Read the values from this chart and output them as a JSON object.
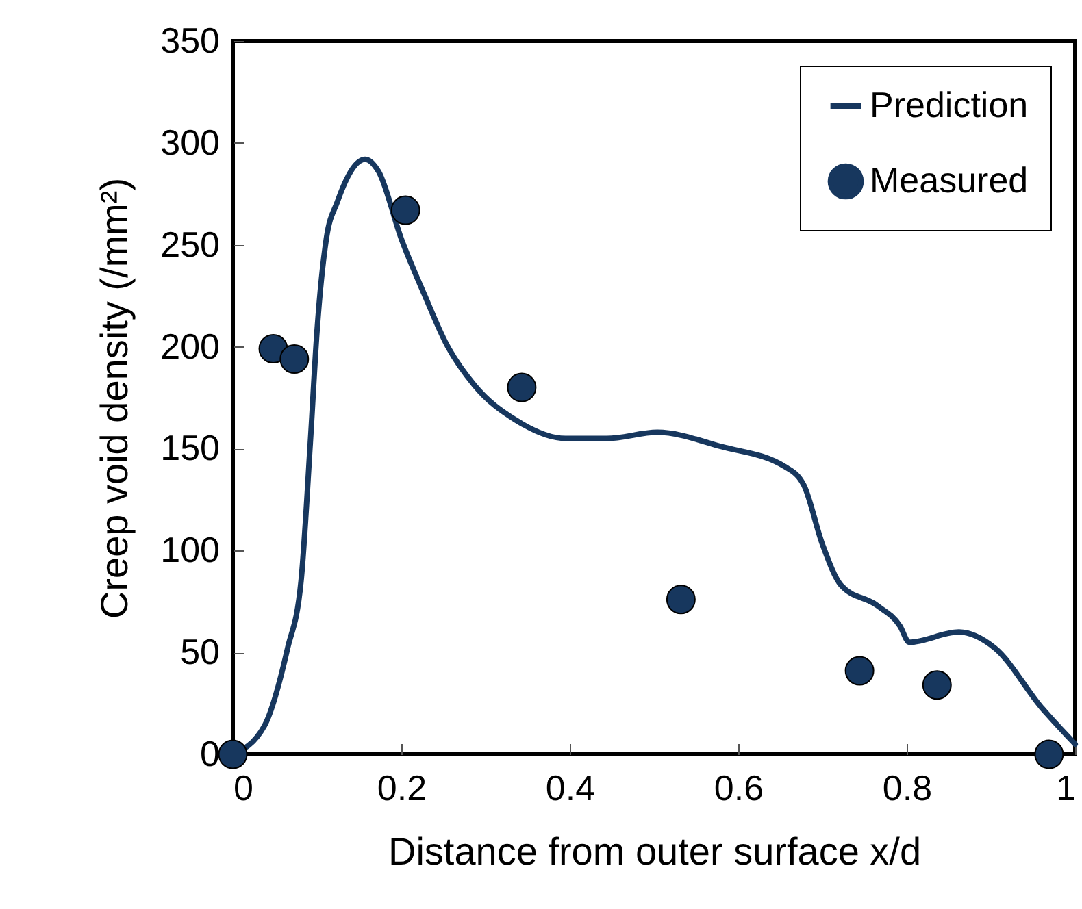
{
  "chart_data": {
    "type": "line",
    "xlabel": "Distance from outer surface  x/d",
    "ylabel": "Creep void density  (/mm²)",
    "xlim": [
      0,
      1
    ],
    "xticks": [
      0,
      0.2,
      0.4,
      0.6,
      0.8,
      1
    ],
    "ylim": [
      0,
      350
    ],
    "yticks": [
      0,
      50,
      100,
      150,
      200,
      250,
      300,
      350
    ],
    "grid": false,
    "legend": "top right",
    "series": [
      {
        "name": "Prediction",
        "color": "#17375e",
        "line_style": "solid",
        "x": [
          0,
          0.0375,
          0.065,
          0.081,
          0.092,
          0.1,
          0.111,
          0.124,
          0.157,
          0.173,
          0.2,
          0.227,
          0.254,
          0.287,
          0.336,
          0.395,
          0.444,
          0.504,
          0.58,
          0.656,
          0.678,
          0.7,
          0.722,
          0.765,
          0.792,
          0.803,
          0.862,
          0.905,
          0.96,
          1.0
        ],
        "values": [
          0,
          14,
          52,
          85,
          153,
          208,
          253,
          271,
          292,
          286,
          253,
          226,
          201,
          181,
          164,
          155,
          155,
          158,
          151,
          141,
          132,
          103,
          83,
          73,
          63,
          55,
          60,
          52,
          23,
          5
        ]
      },
      {
        "name": "Measured",
        "type": "scatter",
        "color": "#17375e",
        "marker": "circle",
        "x": [
          0,
          0.048,
          0.073,
          0.205,
          0.343,
          0.532,
          0.744,
          0.836,
          0.969
        ],
        "values": [
          0,
          199,
          194,
          267,
          180,
          76,
          41,
          34,
          0
        ]
      }
    ]
  }
}
